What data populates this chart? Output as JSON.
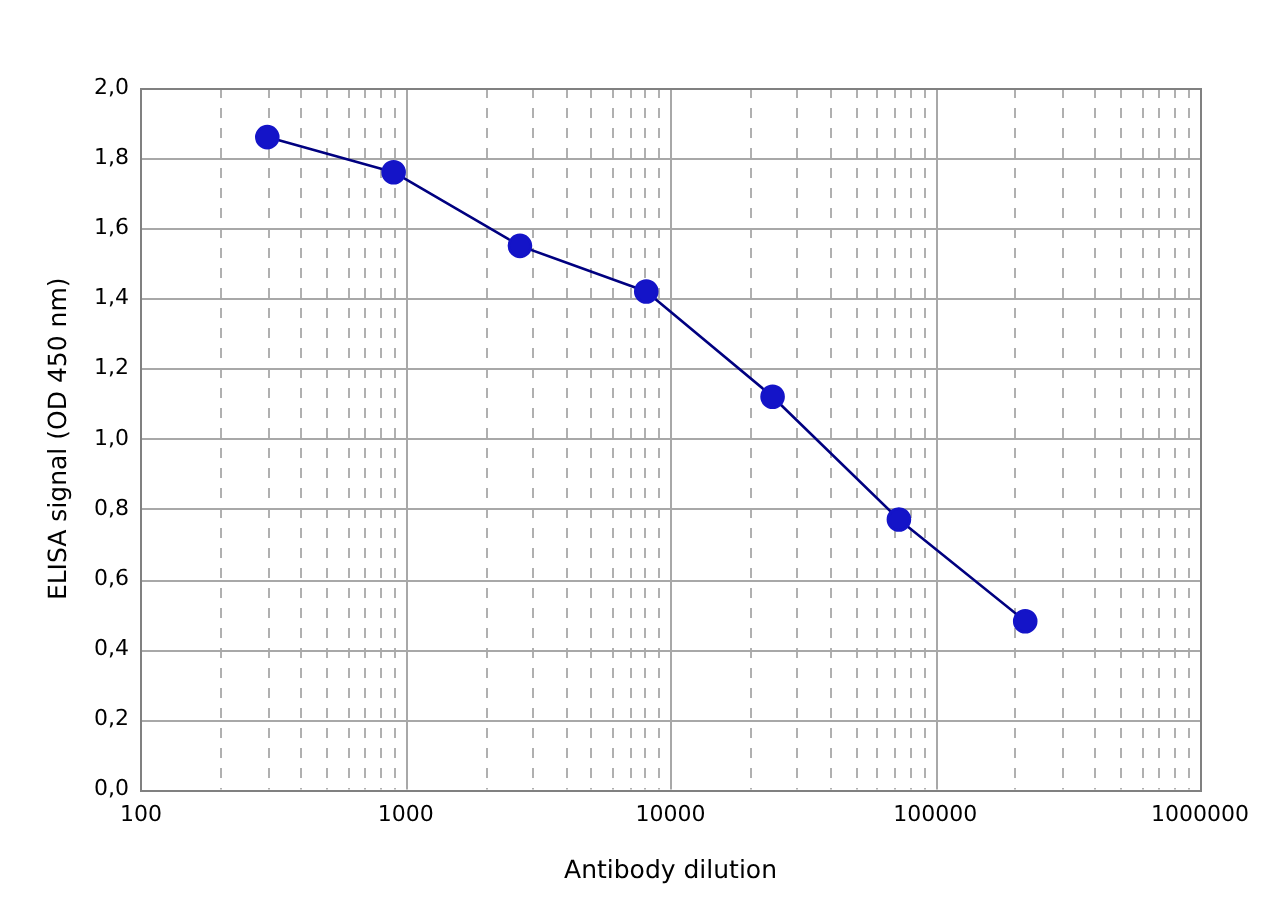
{
  "chart_data": {
    "type": "line",
    "xlabel": "Antibody dilution",
    "ylabel": "ELISA signal (OD 450 nm)",
    "log": "x",
    "grid": true,
    "legend": false,
    "marker": "circle",
    "line_style": "solid",
    "x": [
      300,
      900,
      2700,
      8100,
      24300,
      72900,
      218700
    ],
    "series": [
      {
        "color": "#1414c8",
        "values": [
          1.86,
          1.76,
          1.55,
          1.42,
          1.12,
          0.77,
          0.48
        ]
      }
    ],
    "xlim": [
      100,
      1000000
    ],
    "xticks": [
      100,
      {
        "value": 200,
        "label": null
      },
      {
        "value": 300,
        "label": null
      },
      {
        "value": 400,
        "label": null
      },
      {
        "value": 500,
        "label": null
      },
      {
        "value": 600,
        "label": null
      },
      {
        "value": 700,
        "label": null
      },
      {
        "value": 800,
        "label": null
      },
      {
        "value": 900,
        "label": null
      },
      1000,
      {
        "value": 2000,
        "label": null
      },
      {
        "value": 3000,
        "label": null
      },
      {
        "value": 4000,
        "label": null
      },
      {
        "value": 5000,
        "label": null
      },
      {
        "value": 6000,
        "label": null
      },
      {
        "value": 7000,
        "label": null
      },
      {
        "value": 8000,
        "label": null
      },
      {
        "value": 9000,
        "label": null
      },
      10000,
      {
        "value": 20000,
        "label": null
      },
      {
        "value": 30000,
        "label": null
      },
      {
        "value": 40000,
        "label": null
      },
      {
        "value": 50000,
        "label": null
      },
      {
        "value": 60000,
        "label": null
      },
      {
        "value": 70000,
        "label": null
      },
      {
        "value": 80000,
        "label": null
      },
      {
        "value": 90000,
        "label": null
      },
      100000,
      {
        "value": 200000,
        "label": null
      },
      {
        "value": 300000,
        "label": null
      },
      {
        "value": 400000,
        "label": null
      },
      {
        "value": 500000,
        "label": null
      },
      {
        "value": 600000,
        "label": null
      },
      {
        "value": 700000,
        "label": null
      },
      {
        "value": 800000,
        "label": null
      },
      {
        "value": 900000,
        "label": null
      },
      1000000
    ],
    "ylim": [
      0,
      2
    ],
    "yticks": [
      {
        "value": 0,
        "label": "0,0"
      },
      {
        "value": 0.2,
        "label": "0,2"
      },
      {
        "value": 0.4,
        "label": "0,4"
      },
      {
        "value": 0.6,
        "label": "0,6"
      },
      {
        "value": 0.8,
        "label": "0,8"
      },
      {
        "value": 1,
        "label": "1,0"
      },
      {
        "value": 1.2,
        "label": "1,2"
      },
      {
        "value": 1.4,
        "label": "1,4"
      },
      {
        "value": 1.6,
        "label": "1,6"
      },
      {
        "value": 1.8,
        "label": "1,8"
      },
      {
        "value": 2,
        "label": "2,0"
      }
    ]
  }
}
